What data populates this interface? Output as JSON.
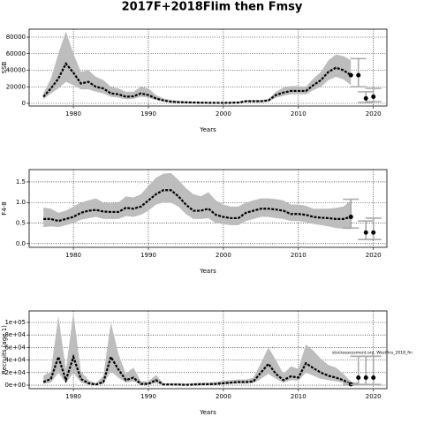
{
  "title": "2017F+2018Flim then Fmsy",
  "chart_data": [
    {
      "type": "line",
      "y_label": "SSB",
      "x_label": "Years",
      "x": [
        1976,
        1977,
        1978,
        1979,
        1980,
        1981,
        1982,
        1983,
        1984,
        1985,
        1986,
        1987,
        1988,
        1989,
        1990,
        1991,
        1992,
        1993,
        1994,
        1995,
        1996,
        1997,
        1998,
        1999,
        2000,
        2001,
        2002,
        2003,
        2004,
        2005,
        2006,
        2007,
        2008,
        2009,
        2010,
        2011,
        2012,
        2013,
        2014,
        2015,
        2016,
        2017
      ],
      "series": [
        {
          "color": "#000000",
          "band_color": "#bdbdbd",
          "values": [
            8000,
            18000,
            30000,
            48000,
            37000,
            24000,
            26000,
            20000,
            18000,
            12000,
            11000,
            8000,
            8500,
            12000,
            10000,
            6000,
            3500,
            2000,
            1500,
            1200,
            1000,
            800,
            700,
            600,
            600,
            700,
            1000,
            2500,
            2500,
            2500,
            3500,
            10000,
            13000,
            15000,
            15000,
            15000,
            22000,
            28000,
            38000,
            43000,
            40000,
            34000
          ],
          "lower": [
            5000,
            12000,
            18000,
            26000,
            22000,
            17000,
            17000,
            14000,
            12000,
            8000,
            7000,
            5000,
            5500,
            8000,
            7000,
            4000,
            2200,
            1200,
            900,
            700,
            600,
            500,
            400,
            350,
            350,
            400,
            600,
            1500,
            1500,
            1500,
            2200,
            7000,
            9000,
            11000,
            11000,
            11000,
            16000,
            20000,
            28000,
            32000,
            29000,
            22000
          ],
          "upper": [
            12000,
            30000,
            60000,
            87000,
            60000,
            38000,
            40000,
            32000,
            28000,
            20000,
            18000,
            14000,
            14000,
            20000,
            18000,
            10000,
            6000,
            4000,
            3000,
            2500,
            2000,
            1800,
            1600,
            1500,
            1500,
            1700,
            2000,
            4000,
            4000,
            4000,
            5000,
            14000,
            19000,
            21000,
            21000,
            20000,
            30000,
            38000,
            52000,
            59000,
            57000,
            52000
          ]
        }
      ],
      "points": {
        "x": [
          2017,
          2018,
          2019,
          2020
        ],
        "values": [
          34000,
          34000,
          6000,
          8000
        ],
        "lower": [
          null,
          20000,
          1000,
          2000
        ],
        "upper": [
          null,
          54000,
          14000,
          18000
        ],
        "color": "#000000",
        "bar_color": "#aaaaaa"
      },
      "xlim": [
        1974.1,
        2021.8
      ],
      "xticks": [
        1980,
        1990,
        2000,
        2010,
        2020
      ],
      "ylim": [
        -3200,
        89600
      ],
      "yticks": [
        0,
        20000,
        40000,
        60000,
        80000
      ],
      "grid": true
    },
    {
      "type": "line",
      "y_label": "F4-8",
      "x_label": "Years",
      "x": [
        1976,
        1977,
        1978,
        1979,
        1980,
        1981,
        1982,
        1983,
        1984,
        1985,
        1986,
        1987,
        1988,
        1989,
        1990,
        1991,
        1992,
        1993,
        1994,
        1995,
        1996,
        1997,
        1998,
        1999,
        2000,
        2001,
        2002,
        2003,
        2004,
        2005,
        2006,
        2007,
        2008,
        2009,
        2010,
        2011,
        2012,
        2013,
        2014,
        2015,
        2016,
        2017
      ],
      "series": [
        {
          "color": "#000000",
          "band_color": "#bdbdbd",
          "values": [
            0.6,
            0.6,
            0.55,
            0.6,
            0.65,
            0.75,
            0.8,
            0.82,
            0.78,
            0.77,
            0.77,
            0.87,
            0.85,
            0.9,
            1.05,
            1.2,
            1.3,
            1.3,
            1.15,
            0.95,
            0.8,
            0.8,
            0.85,
            0.7,
            0.65,
            0.62,
            0.62,
            0.75,
            0.8,
            0.85,
            0.85,
            0.83,
            0.8,
            0.72,
            0.72,
            0.7,
            0.65,
            0.63,
            0.62,
            0.6,
            0.6,
            0.65
          ],
          "lower": [
            0.4,
            0.42,
            0.4,
            0.45,
            0.5,
            0.58,
            0.62,
            0.65,
            0.6,
            0.6,
            0.6,
            0.67,
            0.65,
            0.7,
            0.8,
            0.95,
            1.0,
            1.0,
            0.9,
            0.72,
            0.6,
            0.6,
            0.62,
            0.5,
            0.47,
            0.45,
            0.45,
            0.55,
            0.6,
            0.65,
            0.65,
            0.62,
            0.6,
            0.55,
            0.55,
            0.52,
            0.48,
            0.45,
            0.42,
            0.38,
            0.36,
            0.35
          ],
          "upper": [
            0.88,
            0.85,
            0.75,
            0.8,
            0.9,
            1.0,
            1.05,
            1.1,
            1.0,
            0.98,
            1.0,
            1.15,
            1.12,
            1.2,
            1.4,
            1.6,
            1.7,
            1.72,
            1.55,
            1.35,
            1.2,
            1.15,
            1.25,
            1.05,
            0.95,
            0.9,
            0.9,
            1.0,
            1.05,
            1.1,
            1.1,
            1.08,
            1.05,
            0.95,
            0.95,
            0.92,
            0.85,
            0.85,
            0.85,
            0.87,
            0.9,
            1.05
          ]
        }
      ],
      "points": {
        "x": [
          2017,
          2019,
          2020
        ],
        "values": [
          0.65,
          0.27,
          0.27
        ],
        "lower": [
          0.38,
          0.1,
          0.1
        ],
        "upper": [
          1.08,
          0.55,
          0.62
        ],
        "color": "#000000",
        "bar_color": "#aaaaaa"
      },
      "xlim": [
        1974.1,
        2021.8
      ],
      "xticks": [
        1980,
        1990,
        2000,
        2010,
        2020
      ],
      "ylim": [
        -0.09,
        1.8
      ],
      "yticks": [
        {
          "value": 0,
          "label": "0.0"
        },
        0.5,
        {
          "value": 1,
          "label": "1.0"
        },
        1.5
      ],
      "grid": true
    },
    {
      "type": "line",
      "y_label": "Recruits (age 1)",
      "x_label": "Years",
      "x": [
        1976,
        1977,
        1978,
        1979,
        1980,
        1981,
        1982,
        1983,
        1984,
        1985,
        1986,
        1987,
        1988,
        1989,
        1990,
        1991,
        1992,
        1993,
        1994,
        1995,
        1996,
        1997,
        1998,
        1999,
        2000,
        2001,
        2002,
        2003,
        2004,
        2005,
        2006,
        2007,
        2008,
        2009,
        2010,
        2011,
        2012,
        2013,
        2014,
        2015,
        2016,
        2017
      ],
      "series": [
        {
          "color": "#000000",
          "band_color": "#bdbdbd",
          "values": [
            5000,
            10000,
            45000,
            8000,
            45000,
            10000,
            3000,
            1000,
            5000,
            45000,
            25000,
            8000,
            12000,
            2000,
            2000,
            8000,
            1000,
            1000,
            1000,
            500,
            1000,
            1500,
            1500,
            2000,
            3000,
            4000,
            5000,
            5000,
            6000,
            20000,
            34000,
            18000,
            8000,
            14000,
            12000,
            35000,
            27000,
            20000,
            15000,
            12000,
            8000,
            1500
          ],
          "lower": [
            2000,
            4000,
            20000,
            3000,
            20000,
            4000,
            1000,
            300,
            2000,
            22000,
            12000,
            4000,
            6000,
            800,
            800,
            3000,
            300,
            300,
            300,
            100,
            300,
            500,
            500,
            800,
            1200,
            2000,
            2500,
            2500,
            3000,
            10000,
            18000,
            10000,
            4000,
            8000,
            7000,
            20000,
            15000,
            10000,
            8000,
            6000,
            4000,
            300
          ],
          "upper": [
            15000,
            22000,
            110000,
            25000,
            115000,
            22000,
            8000,
            3000,
            15000,
            100000,
            50000,
            18000,
            28000,
            6000,
            6000,
            16000,
            3000,
            3000,
            3000,
            2000,
            3000,
            4000,
            4000,
            5000,
            7000,
            8000,
            9000,
            9000,
            12000,
            35000,
            60000,
            40000,
            18000,
            30000,
            26000,
            65000,
            55000,
            42000,
            32000,
            28000,
            18000,
            6000
          ]
        }
      ],
      "points": {
        "x": [
          2017,
          2018,
          2019,
          2020
        ],
        "values": [
          1500,
          12000,
          12000,
          12000
        ],
        "lower": [
          300,
          1000,
          1000,
          1000
        ],
        "upper": [
          3000,
          46000,
          46000,
          46000
        ],
        "color": "#000000",
        "bar_color": "#aaaaaa"
      },
      "xlim": [
        1974.1,
        2021.8
      ],
      "xticks": [
        1980,
        1990,
        2000,
        2010,
        2020
      ],
      "ylim": [
        -5600,
        118300
      ],
      "yticks": [
        {
          "value": 0,
          "label": "0e+00"
        },
        {
          "value": 20000,
          "label": "2e+04"
        },
        {
          "value": 40000,
          "label": "4e+04"
        },
        {
          "value": 60000,
          "label": "6e+04"
        },
        {
          "value": 80000,
          "label": "8e+04"
        },
        {
          "value": 100000,
          "label": "1e+05"
        }
      ],
      "grid": true,
      "annotation": "stockassessment.org, Westfins_2018_fin"
    }
  ]
}
